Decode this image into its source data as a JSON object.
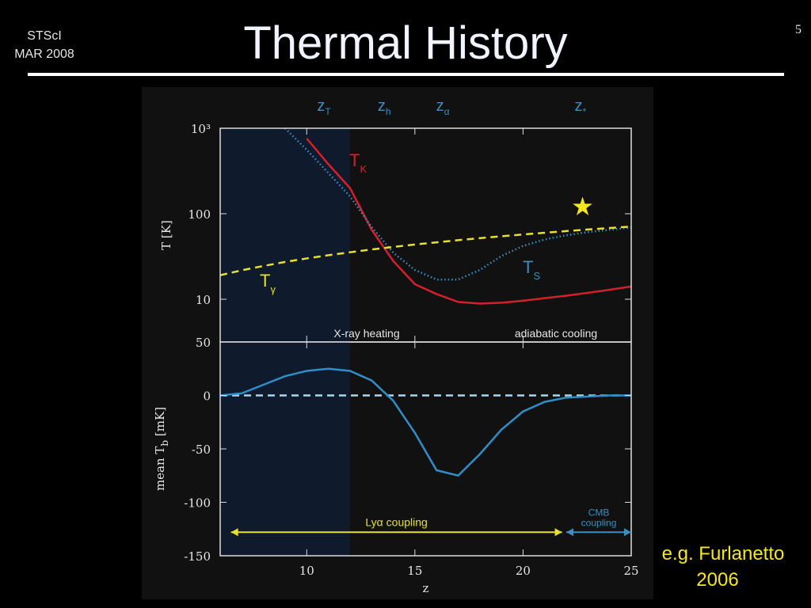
{
  "slide": {
    "org": "STScI",
    "date": "MAR 2008",
    "title": "Thermal History",
    "page": "5",
    "citation": [
      "e.g. Furlanetto",
      "2006"
    ]
  },
  "chart_data": [
    {
      "type": "line",
      "log_y": true,
      "ylabel": "T [K]",
      "xlim": [
        6,
        25
      ],
      "xticks": [
        10,
        15,
        20,
        25
      ],
      "xtick_labels": false,
      "ylim": [
        3.16,
        1000
      ],
      "yticks": [
        10,
        100,
        {
          "value": 1000,
          "label": "10³"
        }
      ],
      "shade": [
        6,
        12
      ],
      "shade_color": "#0f1a2c",
      "region_labels": [
        "X-ray heating",
        "adiabatic cooling"
      ],
      "markers": [
        {
          "label": "z",
          "subscript": "T",
          "x": 10.7
        },
        {
          "label": "z",
          "subscript": "h",
          "x": 13.5
        },
        {
          "label": "z",
          "subscript": "α",
          "x": 16.2
        },
        {
          "label": "z",
          "subscript": "*",
          "x": 22.6
        }
      ],
      "star": {
        "x": 22.75,
        "y": 120,
        "color": "#f5e61e"
      },
      "x": [
        6,
        7,
        8,
        9,
        10,
        11,
        12,
        13,
        14,
        15,
        16,
        17,
        18,
        19,
        20,
        21,
        22,
        23,
        24,
        25
      ],
      "series": [
        {
          "name": "T",
          "subscript": "K",
          "color": "#d4202a",
          "style": "solid",
          "values": [
            null,
            null,
            null,
            null,
            760,
            380,
            200,
            65,
            28,
            15,
            11.5,
            9.3,
            8.9,
            9.1,
            9.6,
            10.3,
            11,
            11.9,
            12.9,
            14.1
          ]
        },
        {
          "name": "T",
          "subscript": "S",
          "color": "#3a8fc0",
          "style": "dotted",
          "values": [
            null,
            null,
            null,
            1000,
            560,
            300,
            160,
            70,
            35,
            22,
            17,
            17,
            22,
            32,
            42,
            50,
            56,
            61,
            65,
            69
          ]
        },
        {
          "name": "T",
          "subscript": "γ",
          "color": "#e8e030",
          "style": "dashed",
          "values": [
            19.1,
            21.8,
            24.5,
            27.3,
            30,
            32.7,
            35.4,
            38.2,
            40.9,
            43.6,
            46.3,
            49.1,
            51.8,
            54.5,
            57.2,
            59.9,
            62.7,
            65.4,
            68.1,
            70.8
          ]
        }
      ]
    },
    {
      "type": "line",
      "log_y": false,
      "ylabel": "mean T",
      "ylabel_subscript": "b",
      "ylabel_unit": "[mK]",
      "xlabel": "z",
      "xlim": [
        6,
        25
      ],
      "xticks": [
        10,
        15,
        20,
        25
      ],
      "xtick_labels": true,
      "ylim": [
        -150,
        50
      ],
      "yticks": [
        -150,
        -100,
        -50,
        0,
        50
      ],
      "shade": [
        6,
        12
      ],
      "shade_color": "#0f1a2c",
      "reference_line": {
        "y": 0,
        "color": "#a8d8ee",
        "style": "dashed"
      },
      "arrows": [
        {
          "label": [
            "Lyα coupling"
          ],
          "from": 6.5,
          "to": 21.8,
          "y": -128,
          "color": "#e8e030"
        },
        {
          "label": [
            "CMB",
            "coupling"
          ],
          "from": 22,
          "to": 25,
          "y": -128,
          "color": "#3a8fc0"
        }
      ],
      "x": [
        6,
        7,
        8,
        9,
        10,
        11,
        12,
        13,
        14,
        15,
        16,
        17,
        18,
        19,
        20,
        21,
        22,
        23,
        24,
        25
      ],
      "series": [
        {
          "color": "#2e8fc8",
          "style": "solid",
          "values": [
            0,
            2,
            10,
            18,
            23,
            25,
            23,
            14,
            -5,
            -35,
            -70,
            -75,
            -55,
            -32,
            -15,
            -6,
            -2,
            -1,
            0,
            0
          ]
        }
      ]
    }
  ]
}
